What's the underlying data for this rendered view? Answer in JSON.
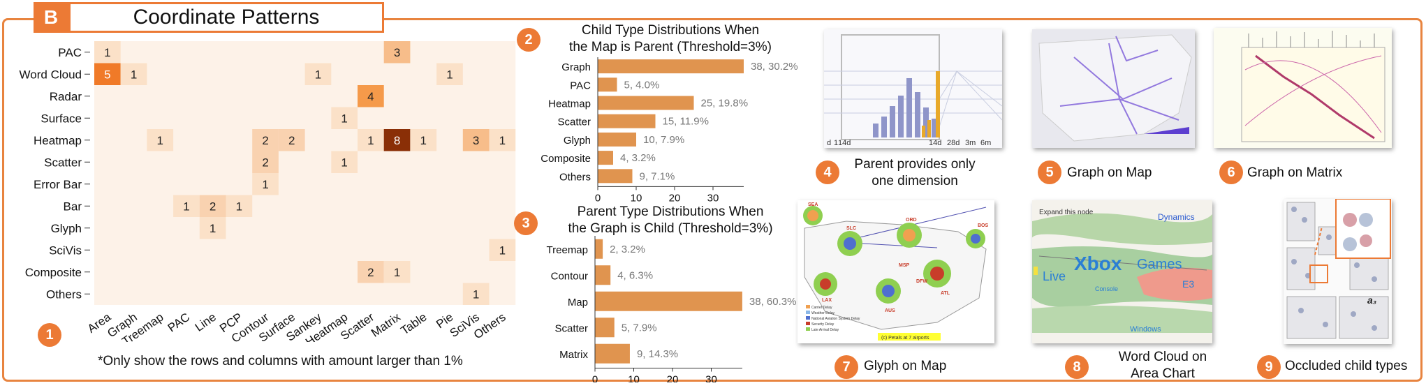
{
  "header": {
    "badge": "B",
    "title": "Coordinate Patterns"
  },
  "colors": {
    "accent": "#ec7a35",
    "bar": "#e0944f",
    "cell_bg": "#fdf2e8"
  },
  "chart_data": [
    {
      "type": "heatmap",
      "rows": [
        "PAC",
        "Word Cloud",
        "Radar",
        "Surface",
        "Heatmap",
        "Scatter",
        "Error Bar",
        "Bar",
        "Glyph",
        "SciVis",
        "Composite",
        "Others"
      ],
      "columns": [
        "Area",
        "Graph",
        "Treemap",
        "PAC",
        "Line",
        "PCP",
        "Contour",
        "Surface",
        "Sankey",
        "Heatmap",
        "Scatter",
        "Matrix",
        "Table",
        "Pie",
        "SciVis",
        "Others"
      ],
      "cells": [
        {
          "row": 0,
          "col": 0,
          "value": 1
        },
        {
          "row": 0,
          "col": 11,
          "value": 3
        },
        {
          "row": 1,
          "col": 0,
          "value": 5
        },
        {
          "row": 1,
          "col": 1,
          "value": 1
        },
        {
          "row": 1,
          "col": 8,
          "value": 1
        },
        {
          "row": 1,
          "col": 13,
          "value": 1
        },
        {
          "row": 2,
          "col": 10,
          "value": 4
        },
        {
          "row": 3,
          "col": 9,
          "value": 1
        },
        {
          "row": 4,
          "col": 2,
          "value": 1
        },
        {
          "row": 4,
          "col": 6,
          "value": 2
        },
        {
          "row": 4,
          "col": 7,
          "value": 2
        },
        {
          "row": 4,
          "col": 10,
          "value": 1
        },
        {
          "row": 4,
          "col": 11,
          "value": 8
        },
        {
          "row": 4,
          "col": 12,
          "value": 1
        },
        {
          "row": 4,
          "col": 14,
          "value": 3
        },
        {
          "row": 4,
          "col": 15,
          "value": 1
        },
        {
          "row": 5,
          "col": 6,
          "value": 2
        },
        {
          "row": 5,
          "col": 9,
          "value": 1
        },
        {
          "row": 6,
          "col": 6,
          "value": 1
        },
        {
          "row": 7,
          "col": 3,
          "value": 1
        },
        {
          "row": 7,
          "col": 4,
          "value": 2
        },
        {
          "row": 7,
          "col": 5,
          "value": 1
        },
        {
          "row": 8,
          "col": 4,
          "value": 1
        },
        {
          "row": 9,
          "col": 15,
          "value": 1
        },
        {
          "row": 10,
          "col": 10,
          "value": 2
        },
        {
          "row": 10,
          "col": 11,
          "value": 1
        },
        {
          "row": 11,
          "col": 14,
          "value": 1
        }
      ],
      "note": "*Only show the rows and columns with amount larger than 1%"
    },
    {
      "type": "bar",
      "orientation": "horizontal",
      "title": "Child Type Distributions When the Map is Parent (Threshold=3%)",
      "categories": [
        "Graph",
        "PAC",
        "Heatmap",
        "Scatter",
        "Glyph",
        "Composite",
        "Others"
      ],
      "values": [
        38,
        5,
        25,
        15,
        10,
        4,
        9
      ],
      "labels": [
        "38, 30.2%",
        "5, 4.0%",
        "25, 19.8%",
        "15, 11.9%",
        "10, 7.9%",
        "4, 3.2%",
        "9, 7.1%"
      ],
      "ticks": [
        0,
        10,
        20,
        30
      ],
      "xlim": [
        0,
        38
      ]
    },
    {
      "type": "bar",
      "orientation": "horizontal",
      "title": "Parent Type Distributions When the Graph is Child (Threshold=3%)",
      "categories": [
        "Treemap",
        "Contour",
        "Map",
        "Scatter",
        "Matrix"
      ],
      "values": [
        2,
        4,
        38,
        5,
        9
      ],
      "labels": [
        "2, 3.2%",
        "4, 6.3%",
        "38, 60.3%",
        "5, 7.9%",
        "9, 14.3%"
      ],
      "ticks": [
        0,
        10,
        20,
        30
      ],
      "xlim": [
        0,
        38
      ]
    }
  ],
  "panels": {
    "p1": {
      "num": "1"
    },
    "p2": {
      "num": "2",
      "title1": "Child Type Distributions When",
      "title2": "the Map is Parent (Threshold=3%)"
    },
    "p3": {
      "num": "3",
      "title1": "Parent Type Distributions When",
      "title2": "the Graph is Child (Threshold=3%)"
    },
    "p4": {
      "num": "4",
      "caption1": "Parent provides only",
      "caption2": "one dimension",
      "axis_labels": [
        "d",
        "1",
        "14d",
        "14d",
        "28d",
        "3m",
        "6m"
      ]
    },
    "p5": {
      "num": "5",
      "caption": "Graph on Map"
    },
    "p6": {
      "num": "6",
      "caption": "Graph on Matrix"
    },
    "p7": {
      "num": "7",
      "caption": "Glyph on Map",
      "city_labels": [
        "SEA",
        "SLC",
        "ORD",
        "BOS",
        "LAX",
        "ATL",
        "AUS",
        "DFW",
        "MSP"
      ],
      "legend": [
        "Carrier Delay",
        "Weather Delay",
        "National Aviation System Delay",
        "Security Delay",
        "Late Arrival Delay"
      ],
      "legend_colors": [
        "#f0a050",
        "#8bb8e8",
        "#4f6fcf",
        "#c83d2a",
        "#8fcf50"
      ],
      "footnote": "(c) Petals at 7 airports"
    },
    "p8": {
      "num": "8",
      "caption1": "Word Cloud on",
      "caption2": "Area Chart",
      "tooltip": "Expand this node",
      "words": [
        "Dynamics",
        "Xbox",
        "Games",
        "Live",
        "Console",
        "Windows",
        "E3"
      ]
    },
    "p9": {
      "num": "9",
      "caption": "Occluded child types",
      "label": "a₃"
    }
  }
}
